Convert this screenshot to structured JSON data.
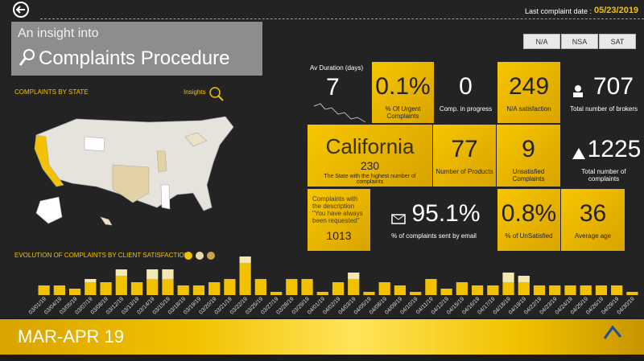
{
  "header": {
    "last_date_label": "Last complaint date :",
    "last_date": "05/23/2019"
  },
  "title": {
    "line1": "An insight into",
    "line2": "Complaints Procedure"
  },
  "filters": [
    "N/A",
    "NSA",
    "SAT"
  ],
  "map": {
    "title": "COMPLAINTS BY STATE",
    "insights": "Insights"
  },
  "tiles": {
    "duration": {
      "label": "Av Duration (days)",
      "value": "7"
    },
    "urgent": {
      "value": "0.1%",
      "label": "% Of Urgent Complaints"
    },
    "progress": {
      "value": "0",
      "label": "Comp. in progress"
    },
    "na_satisfaction": {
      "value": "249",
      "label": "N/A satisfaction"
    },
    "brokers": {
      "value": "707",
      "label": "Total number of brokers"
    },
    "state": {
      "value": "California",
      "count": "230",
      "label": "The State with the highest number of complaints"
    },
    "products": {
      "value": "77",
      "label": "Number of Products"
    },
    "unsatisfied": {
      "value": "9",
      "label": "Unsatisfied Complaints"
    },
    "total": {
      "value": "1225",
      "label": "Total number of complaints"
    },
    "description": {
      "label": "Complaints with the description \"You have always been requested\"",
      "value": "1013"
    },
    "email": {
      "value": "95.1%",
      "label": "% of complaints sent by email"
    },
    "unsatisfied_pct": {
      "value": "0.8%",
      "label": "% of UnSatisfied"
    },
    "age": {
      "value": "36",
      "label": "Average age"
    }
  },
  "chart_data": {
    "type": "bar",
    "stacked": true,
    "title": "EVOLUTION OF COMPLAINTS BY CLIENT SATISFACTION",
    "categories": [
      "03/01/19",
      "03/04/19",
      "03/05/19",
      "03/07/19",
      "03/08/19",
      "03/12/19",
      "03/13/19",
      "03/14/19",
      "03/15/19",
      "03/18/19",
      "03/19/19",
      "03/20/19",
      "03/21/19",
      "03/22/19",
      "03/25/19",
      "03/27/19",
      "03/28/19",
      "03/29/19",
      "04/01/19",
      "04/02/19",
      "04/03/19",
      "04/05/19",
      "04/08/19",
      "04/09/19",
      "04/10/19",
      "04/11/19",
      "04/12/19",
      "04/15/19",
      "04/16/19",
      "04/17/19",
      "04/18/19",
      "04/19/19",
      "04/22/19",
      "04/23/19",
      "04/24/19",
      "04/25/19",
      "04/26/19",
      "04/29/19",
      "04/30/19"
    ],
    "series": [
      {
        "color": "#f2c200",
        "values": [
          3,
          3,
          2,
          4,
          4,
          6,
          4,
          5,
          5,
          3,
          3,
          4,
          5,
          10,
          5,
          1,
          5,
          5,
          1,
          4,
          5,
          1,
          4,
          3,
          1,
          5,
          2,
          4,
          3,
          3,
          4,
          4,
          3,
          3,
          3,
          3,
          3,
          3,
          1
        ]
      },
      {
        "color": "#f3e9b0",
        "values": [
          0,
          0,
          0,
          1,
          0,
          2,
          0,
          3,
          3,
          0,
          0,
          0,
          0,
          2,
          0,
          0,
          0,
          0,
          0,
          0,
          2,
          0,
          0,
          0,
          0,
          0,
          0,
          0,
          0,
          0,
          3,
          2,
          0,
          0,
          0,
          0,
          0,
          0,
          0
        ]
      }
    ]
  },
  "footer": {
    "period": "MAR-APR 19"
  }
}
